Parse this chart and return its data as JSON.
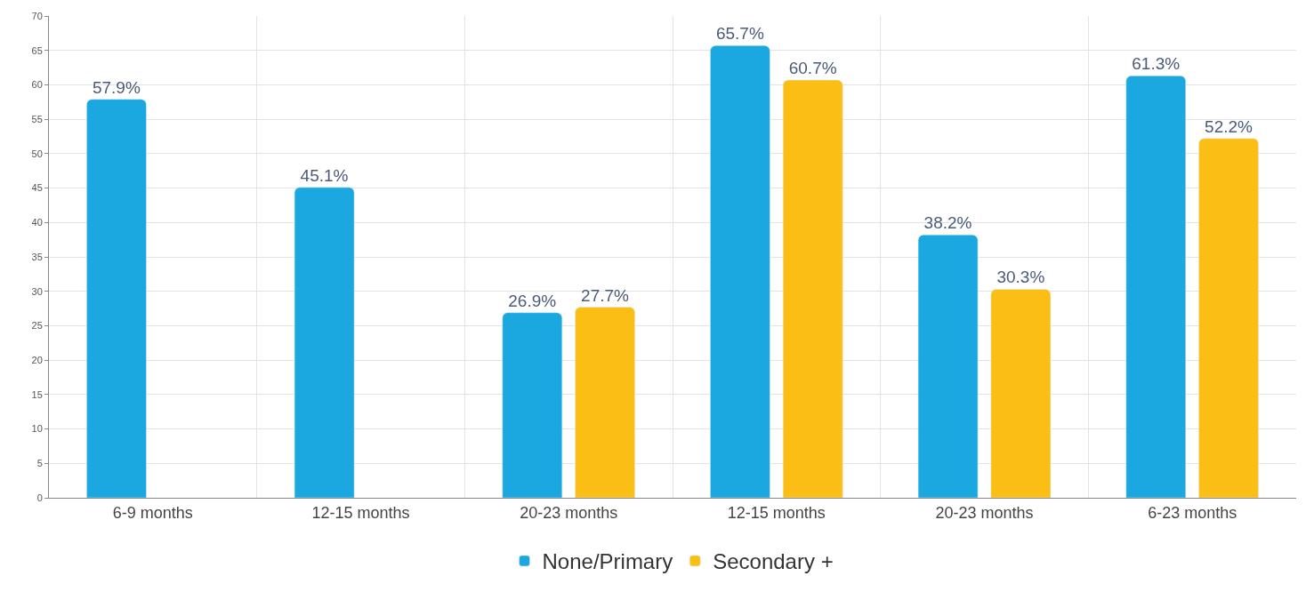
{
  "chart_data": {
    "type": "bar",
    "categories": [
      "6-9 months",
      "12-15 months",
      "20-23 months",
      "12-15 months",
      "20-23 months",
      "6-23 months"
    ],
    "series": [
      {
        "name": "None/Primary",
        "color": "#1ba8e0",
        "values": [
          57.9,
          45.1,
          26.9,
          65.7,
          38.2,
          61.3
        ],
        "value_labels": [
          "57.9%",
          "45.1%",
          "26.9%",
          "65.7%",
          "38.2%",
          "61.3%"
        ]
      },
      {
        "name": "Secondary +",
        "color": "#fbbe14",
        "values": [
          null,
          null,
          27.7,
          60.7,
          30.3,
          52.2
        ],
        "value_labels": [
          null,
          null,
          "27.7%",
          "60.7%",
          "30.3%",
          "52.2%"
        ]
      }
    ],
    "ylim": [
      0,
      70
    ],
    "yticks": [
      0,
      5,
      10,
      15,
      20,
      25,
      30,
      35,
      40,
      45,
      50,
      55,
      60,
      65,
      70
    ],
    "grid": true,
    "legend": "bottom"
  }
}
